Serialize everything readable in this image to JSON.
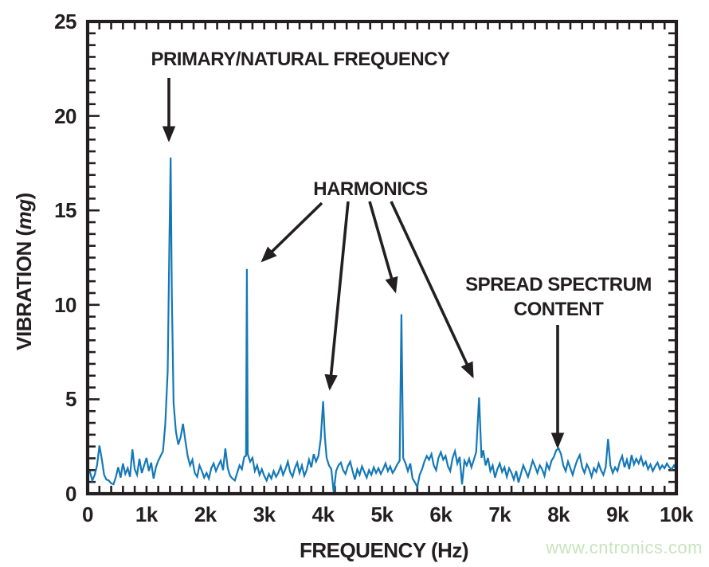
{
  "watermark": {
    "text": "www.cntronics.com",
    "color": "#c8e4bc"
  },
  "chart_data": {
    "type": "line",
    "title": "",
    "xlabel": "FREQUENCY (Hz)",
    "ylabel": {
      "prefix": "VIBRATION (",
      "unit_italic": "mg",
      "suffix": ")"
    },
    "xlim": [
      0,
      10000
    ],
    "ylim": [
      0,
      25
    ],
    "grid": false,
    "legend": "none",
    "line_color": "#1478b8",
    "frame_color": "#231f20",
    "x_major_ticks_hz": [
      0,
      1000,
      2000,
      3000,
      4000,
      5000,
      6000,
      7000,
      8000,
      9000,
      10000
    ],
    "x_tick_labels": [
      "0",
      "1k",
      "2k",
      "3k",
      "4k",
      "5k",
      "6k",
      "7k",
      "8k",
      "9k",
      "10k"
    ],
    "x_minor_step_hz": 200,
    "y_major_ticks": [
      0,
      5,
      10,
      15,
      20,
      25
    ],
    "y_tick_labels": [
      "0",
      "5",
      "10",
      "15",
      "20",
      "25"
    ],
    "y_minor_divisions_per_major": 8,
    "annotations": [
      {
        "id": "primary",
        "label": "PRIMARY/NATURAL FREQUENCY",
        "points_to_hz": [
          1400
        ]
      },
      {
        "id": "harmonics",
        "label": "HARMONICS",
        "points_to_hz": [
          2700,
          4000,
          5330,
          6650
        ]
      },
      {
        "id": "spread",
        "label_line1": "SPREAD SPECTRUM",
        "label_line2": "CONTENT",
        "points_to_hz": [
          8000
        ]
      }
    ],
    "peaks": [
      {
        "hz": 1400,
        "mg": 17.8,
        "note": "primary/natural frequency"
      },
      {
        "hz": 2700,
        "mg": 11.9,
        "note": "harmonic"
      },
      {
        "hz": 4000,
        "mg": 4.9,
        "note": "harmonic"
      },
      {
        "hz": 5330,
        "mg": 9.5,
        "note": "harmonic"
      },
      {
        "hz": 6650,
        "mg": 5.1,
        "note": "harmonic"
      },
      {
        "hz": 8000,
        "mg": 2.4,
        "note": "spread spectrum content"
      }
    ],
    "series": [
      {
        "name": "vibration-spectrum",
        "points": [
          [
            40,
            1.15
          ],
          [
            80,
            0.7
          ],
          [
            120,
            1.0
          ],
          [
            160,
            1.5
          ],
          [
            200,
            2.55
          ],
          [
            240,
            1.85
          ],
          [
            280,
            1.0
          ],
          [
            320,
            0.75
          ],
          [
            360,
            0.7
          ],
          [
            400,
            0.55
          ],
          [
            440,
            0.5
          ],
          [
            480,
            0.9
          ],
          [
            520,
            1.4
          ],
          [
            560,
            0.85
          ],
          [
            600,
            1.6
          ],
          [
            640,
            1.05
          ],
          [
            680,
            1.35
          ],
          [
            720,
            0.9
          ],
          [
            760,
            2.35
          ],
          [
            800,
            1.3
          ],
          [
            840,
            1.0
          ],
          [
            880,
            1.85
          ],
          [
            920,
            1.1
          ],
          [
            960,
            1.5
          ],
          [
            1000,
            1.9
          ],
          [
            1040,
            1.2
          ],
          [
            1080,
            1.65
          ],
          [
            1120,
            0.8
          ],
          [
            1160,
            1.4
          ],
          [
            1200,
            1.75
          ],
          [
            1240,
            2.0
          ],
          [
            1280,
            2.25
          ],
          [
            1320,
            3.7
          ],
          [
            1360,
            6.5
          ],
          [
            1390,
            13.5
          ],
          [
            1410,
            17.8
          ],
          [
            1430,
            10.5
          ],
          [
            1460,
            4.8
          ],
          [
            1500,
            3.3
          ],
          [
            1540,
            2.6
          ],
          [
            1580,
            3.0
          ],
          [
            1620,
            3.7
          ],
          [
            1660,
            2.8
          ],
          [
            1700,
            2.0
          ],
          [
            1740,
            1.5
          ],
          [
            1780,
            1.8
          ],
          [
            1820,
            1.1
          ],
          [
            1860,
            0.9
          ],
          [
            1900,
            1.5
          ],
          [
            1940,
            1.2
          ],
          [
            1980,
            0.85
          ],
          [
            2020,
            1.1
          ],
          [
            2060,
            0.8
          ],
          [
            2100,
            1.35
          ],
          [
            2140,
            1.6
          ],
          [
            2180,
            1.2
          ],
          [
            2220,
            1.5
          ],
          [
            2260,
            1.75
          ],
          [
            2300,
            1.25
          ],
          [
            2340,
            2.4
          ],
          [
            2380,
            1.35
          ],
          [
            2420,
            0.95
          ],
          [
            2460,
            0.8
          ],
          [
            2500,
            0.7
          ],
          [
            2540,
            1.1
          ],
          [
            2580,
            1.5
          ],
          [
            2620,
            1.3
          ],
          [
            2660,
            1.95
          ],
          [
            2690,
            2.0
          ],
          [
            2705,
            11.9
          ],
          [
            2720,
            2.1
          ],
          [
            2760,
            1.7
          ],
          [
            2800,
            1.9
          ],
          [
            2840,
            1.2
          ],
          [
            2880,
            1.5
          ],
          [
            2920,
            1.0
          ],
          [
            2960,
            1.3
          ],
          [
            3000,
            0.95
          ],
          [
            3040,
            0.7
          ],
          [
            3080,
            1.05
          ],
          [
            3120,
            0.8
          ],
          [
            3160,
            1.2
          ],
          [
            3200,
            0.9
          ],
          [
            3240,
            1.1
          ],
          [
            3280,
            1.45
          ],
          [
            3320,
            1.0
          ],
          [
            3360,
            1.3
          ],
          [
            3400,
            1.7
          ],
          [
            3440,
            1.15
          ],
          [
            3480,
            0.9
          ],
          [
            3520,
            1.35
          ],
          [
            3560,
            1.65
          ],
          [
            3600,
            1.1
          ],
          [
            3640,
            1.5
          ],
          [
            3680,
            0.95
          ],
          [
            3720,
            1.25
          ],
          [
            3760,
            1.8
          ],
          [
            3800,
            1.4
          ],
          [
            3840,
            2.1
          ],
          [
            3880,
            1.7
          ],
          [
            3920,
            2.0
          ],
          [
            3960,
            2.9
          ],
          [
            4000,
            4.9
          ],
          [
            4030,
            3.0
          ],
          [
            4060,
            1.9
          ],
          [
            4100,
            1.5
          ],
          [
            4140,
            1.3
          ],
          [
            4180,
            0.05
          ],
          [
            4220,
            1.2
          ],
          [
            4260,
            1.5
          ],
          [
            4300,
            1.65
          ],
          [
            4340,
            1.25
          ],
          [
            4380,
            1.05
          ],
          [
            4420,
            1.45
          ],
          [
            4460,
            1.7
          ],
          [
            4500,
            1.2
          ],
          [
            4540,
            0.75
          ],
          [
            4580,
            1.3
          ],
          [
            4620,
            1.0
          ],
          [
            4660,
            1.45
          ],
          [
            4700,
            1.15
          ],
          [
            4740,
            0.85
          ],
          [
            4780,
            1.25
          ],
          [
            4820,
            1.0
          ],
          [
            4860,
            1.4
          ],
          [
            4900,
            1.1
          ],
          [
            4940,
            1.35
          ],
          [
            4980,
            1.05
          ],
          [
            5020,
            1.3
          ],
          [
            5060,
            1.6
          ],
          [
            5100,
            1.2
          ],
          [
            5140,
            1.45
          ],
          [
            5180,
            1.1
          ],
          [
            5220,
            1.3
          ],
          [
            5260,
            1.55
          ],
          [
            5300,
            1.75
          ],
          [
            5330,
            9.5
          ],
          [
            5360,
            1.9
          ],
          [
            5400,
            1.6
          ],
          [
            5440,
            1.2
          ],
          [
            5480,
            1.6
          ],
          [
            5520,
            0.8
          ],
          [
            5560,
            0.6
          ],
          [
            5600,
            0.35
          ],
          [
            5640,
            1.0
          ],
          [
            5680,
            1.3
          ],
          [
            5720,
            1.7
          ],
          [
            5760,
            2.0
          ],
          [
            5800,
            1.8
          ],
          [
            5840,
            2.1
          ],
          [
            5880,
            1.5
          ],
          [
            5920,
            1.25
          ],
          [
            5960,
            1.9
          ],
          [
            6000,
            2.2
          ],
          [
            6040,
            1.8
          ],
          [
            6080,
            2.0
          ],
          [
            6120,
            1.45
          ],
          [
            6160,
            1.2
          ],
          [
            6200,
            1.9
          ],
          [
            6240,
            2.25
          ],
          [
            6280,
            1.6
          ],
          [
            6320,
            1.95
          ],
          [
            6360,
            0.5
          ],
          [
            6400,
            1.75
          ],
          [
            6440,
            1.5
          ],
          [
            6480,
            1.85
          ],
          [
            6520,
            1.4
          ],
          [
            6560,
            1.8
          ],
          [
            6600,
            2.2
          ],
          [
            6650,
            5.1
          ],
          [
            6690,
            1.9
          ],
          [
            6720,
            2.3
          ],
          [
            6760,
            1.5
          ],
          [
            6800,
            1.9
          ],
          [
            6840,
            1.2
          ],
          [
            6880,
            1.5
          ],
          [
            6920,
            0.85
          ],
          [
            6960,
            1.3
          ],
          [
            7000,
            1.6
          ],
          [
            7040,
            1.15
          ],
          [
            7080,
            1.4
          ],
          [
            7120,
            0.9
          ],
          [
            7160,
            1.35
          ],
          [
            7200,
            1.1
          ],
          [
            7240,
            0.75
          ],
          [
            7280,
            1.2
          ],
          [
            7320,
            0.6
          ],
          [
            7360,
            1.05
          ],
          [
            7400,
            1.5
          ],
          [
            7440,
            1.2
          ],
          [
            7480,
            0.9
          ],
          [
            7520,
            1.3
          ],
          [
            7560,
            1.75
          ],
          [
            7600,
            1.45
          ],
          [
            7640,
            1.1
          ],
          [
            7680,
            1.5
          ],
          [
            7720,
            1.3
          ],
          [
            7760,
            0.95
          ],
          [
            7800,
            1.6
          ],
          [
            7840,
            1.3
          ],
          [
            7880,
            1.75
          ],
          [
            7920,
            1.95
          ],
          [
            7960,
            2.3
          ],
          [
            8000,
            2.4
          ],
          [
            8040,
            2.1
          ],
          [
            8080,
            1.5
          ],
          [
            8120,
            1.2
          ],
          [
            8160,
            1.7
          ],
          [
            8200,
            1.35
          ],
          [
            8240,
            1.0
          ],
          [
            8280,
            1.45
          ],
          [
            8320,
            1.8
          ],
          [
            8360,
            2.05
          ],
          [
            8400,
            1.4
          ],
          [
            8440,
            1.1
          ],
          [
            8480,
            1.55
          ],
          [
            8520,
            1.3
          ],
          [
            8560,
            0.9
          ],
          [
            8600,
            1.35
          ],
          [
            8640,
            1.15
          ],
          [
            8680,
            1.6
          ],
          [
            8720,
            1.25
          ],
          [
            8760,
            1.0
          ],
          [
            8800,
            1.4
          ],
          [
            8840,
            2.9
          ],
          [
            8880,
            1.5
          ],
          [
            8920,
            1.1
          ],
          [
            8960,
            1.4
          ],
          [
            9000,
            1.2
          ],
          [
            9040,
            1.7
          ],
          [
            9080,
            2.0
          ],
          [
            9120,
            1.4
          ],
          [
            9160,
            1.8
          ],
          [
            9200,
            1.3
          ],
          [
            9240,
            2.05
          ],
          [
            9280,
            1.55
          ],
          [
            9320,
            1.85
          ],
          [
            9360,
            1.6
          ],
          [
            9400,
            1.95
          ],
          [
            9440,
            1.5
          ],
          [
            9480,
            1.7
          ],
          [
            9520,
            1.3
          ],
          [
            9560,
            1.55
          ],
          [
            9600,
            1.2
          ],
          [
            9640,
            1.45
          ],
          [
            9680,
            1.65
          ],
          [
            9720,
            1.3
          ],
          [
            9760,
            1.5
          ],
          [
            9800,
            1.35
          ],
          [
            9840,
            1.6
          ],
          [
            9880,
            1.4
          ],
          [
            9920,
            1.3
          ],
          [
            9960,
            1.5
          ],
          [
            10000,
            1.25
          ]
        ]
      }
    ]
  }
}
